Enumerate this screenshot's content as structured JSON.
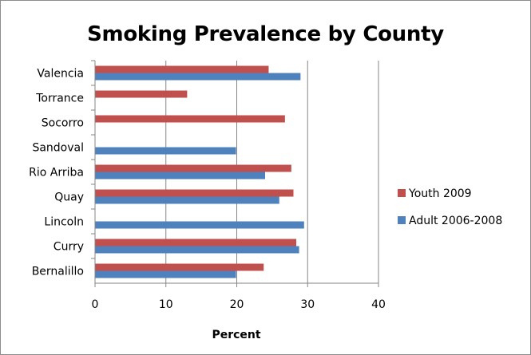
{
  "chart_data": {
    "type": "bar",
    "orientation": "horizontal",
    "title": "Smoking Prevalence by County",
    "xlabel": "Percent",
    "ylabel": "",
    "xlim": [
      0,
      40
    ],
    "xticks": [
      0,
      10,
      20,
      30,
      40
    ],
    "grid": true,
    "legend_position": "right",
    "categories": [
      "Bernalillo",
      "Curry",
      "Lincoln",
      "Quay",
      "Rio Arriba",
      "Sandoval",
      "Socorro",
      "Torrance",
      "Valencia"
    ],
    "series": [
      {
        "name": "Youth 2009",
        "color": "#c0504d",
        "values": [
          23.8,
          28.4,
          null,
          28.0,
          27.7,
          null,
          26.8,
          13.0,
          24.5
        ]
      },
      {
        "name": "Adult 2006-2008",
        "color": "#4f81bd",
        "values": [
          19.9,
          28.8,
          29.5,
          26.0,
          24.0,
          19.9,
          null,
          null,
          29.0
        ]
      }
    ]
  }
}
